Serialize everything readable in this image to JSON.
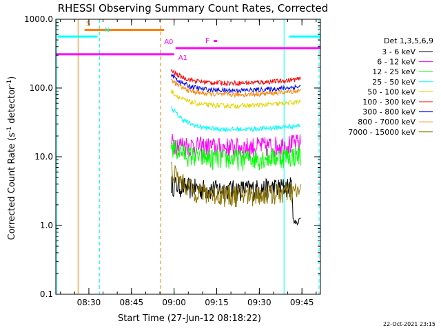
{
  "chart_data": {
    "type": "line",
    "title": "RHESSI Observing Summary Count Rates, Corrected",
    "xlabel": "Start Time (27-Jun-12 08:18:22)",
    "ylabel_main": "Corrected Count Rate (s",
    "ylabel_sup": "-1",
    "ylabel_mid": " detector",
    "ylabel_sup2": "-1",
    "ylabel_end": ")",
    "x_start_minutes": 498.37,
    "x_end_minutes": 591.5,
    "x_ticks": [
      {
        "minutes": 510,
        "label": "08:30"
      },
      {
        "minutes": 525,
        "label": "08:45"
      },
      {
        "minutes": 540,
        "label": "09:00"
      },
      {
        "minutes": 555,
        "label": "09:15"
      },
      {
        "minutes": 570,
        "label": "09:30"
      },
      {
        "minutes": 585,
        "label": "09:45"
      }
    ],
    "y_scale": "log",
    "ylim": [
      0.1,
      1000
    ],
    "y_ticks": [
      {
        "value": 1000,
        "label": "1000.0"
      },
      {
        "value": 100,
        "label": "100.0"
      },
      {
        "value": 10,
        "label": "10.0"
      },
      {
        "value": 1,
        "label": "1.0"
      },
      {
        "value": 0.1,
        "label": "0.1"
      }
    ],
    "legend_title": "Det 1,3,5,6,9",
    "series": [
      {
        "name": "3 - 6 keV",
        "color": "#000000",
        "level": 3.4,
        "start": 3.8,
        "dip": true
      },
      {
        "name": "6 - 12 keV",
        "color": "#ff00ff",
        "level": 14,
        "start": 15
      },
      {
        "name": "12 - 25 keV",
        "color": "#00ff00",
        "level": 9.5,
        "start": 14
      },
      {
        "name": "25 - 50 keV",
        "color": "#00ffff",
        "level": 25,
        "start": 50
      },
      {
        "name": "50 - 100 keV",
        "color": "#e6d400",
        "level": 55,
        "start": 85
      },
      {
        "name": "100 - 300 keV",
        "color": "#ff0000",
        "level": 118,
        "start": 170
      },
      {
        "name": "300 - 800 keV",
        "color": "#0000ff",
        "level": 92,
        "start": 150
      },
      {
        "name": "800 - 7000 keV",
        "color": "#ff8000",
        "level": 80,
        "start": 125
      },
      {
        "name": "7000 - 15000 keV",
        "color": "#8b7300",
        "level": 2.8,
        "start": 6.5
      }
    ],
    "data_window": {
      "start_minutes": 539.0,
      "end_minutes": 584.5
    },
    "flag_bars": [
      {
        "label": "S",
        "color": "#ff8000",
        "value": 700,
        "from_minutes": 508.5,
        "to_minutes": 536.5,
        "label_minutes": 509.0,
        "label_side": "left"
      },
      {
        "label": "N",
        "color": "#00ffff",
        "value": 560,
        "from_minutes": 499.0,
        "to_minutes": 513.0,
        "label_minutes": 515.5,
        "label_side": "left"
      },
      {
        "label": "A0",
        "color": "#ff00ff",
        "value": 380,
        "from_minutes": 540.5,
        "to_minutes": 591.5,
        "label_minutes": 536.5,
        "label_side": "left"
      },
      {
        "label": "A1",
        "color": "#ff00ff",
        "value": 310,
        "from_minutes": 498.5,
        "to_minutes": 540.0,
        "label_minutes": 541.5,
        "label_side": "left"
      },
      {
        "label": "N",
        "color": "#00ffff",
        "value": 560,
        "from_minutes": 580.5,
        "to_minutes": 591.5,
        "label_minutes": 0,
        "label_side": "none"
      },
      {
        "label": "F",
        "color": "#ff00ff",
        "value": 490,
        "from_minutes": 0,
        "to_minutes": 0,
        "label_minutes": 551.0,
        "label_side": "left"
      }
    ],
    "vertical_lines": [
      {
        "minutes": 498.6,
        "color": "#00ffff",
        "style": "solid"
      },
      {
        "minutes": 506.2,
        "color": "#ff8000",
        "style": "solid"
      },
      {
        "minutes": 513.8,
        "color": "#00ffff",
        "style": "dashed"
      },
      {
        "minutes": 535.2,
        "color": "#ff8000",
        "style": "dashed"
      },
      {
        "minutes": 578.7,
        "color": "#00ffff",
        "style": "solid"
      },
      {
        "minutes": 594.0,
        "color": "#00ffff",
        "style": "dashed"
      }
    ],
    "timestamp": "22-Oct-2021 23:15"
  }
}
